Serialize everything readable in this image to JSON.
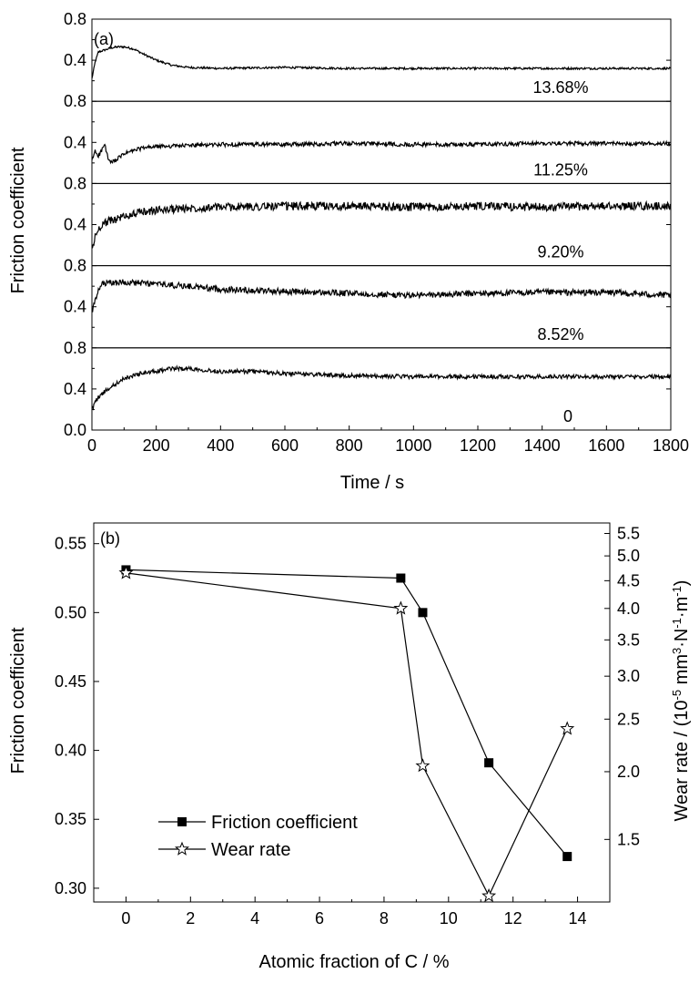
{
  "chart_data": [
    {
      "type": "line",
      "panel_label": "(a)",
      "xlabel": "Time / s",
      "ylabel": "Friction coefficient",
      "xlim": [
        0,
        1800
      ],
      "x_ticks": [
        "0",
        "200",
        "400",
        "600",
        "800",
        "1000",
        "1200",
        "1400",
        "1600",
        "1800"
      ],
      "y_tick_labels": [
        "0.8",
        "0.4",
        "0.0"
      ],
      "subplots": [
        {
          "label": "13.68%",
          "ylim": [
            0.0,
            0.8
          ],
          "y_ticks": [
            "0.8",
            "0.4"
          ],
          "x": [
            0,
            10,
            20,
            40,
            60,
            80,
            100,
            130,
            160,
            200,
            250,
            300,
            400,
            600,
            800,
            1000,
            1200,
            1400,
            1600,
            1800
          ],
          "y": [
            0.22,
            0.38,
            0.48,
            0.5,
            0.52,
            0.53,
            0.53,
            0.51,
            0.46,
            0.4,
            0.35,
            0.33,
            0.32,
            0.33,
            0.32,
            0.32,
            0.32,
            0.32,
            0.32,
            0.32
          ],
          "noise": 0.01
        },
        {
          "label": "11.25%",
          "ylim": [
            0.0,
            0.8
          ],
          "y_ticks": [
            "0.8",
            "0.4"
          ],
          "x": [
            0,
            10,
            20,
            30,
            40,
            50,
            60,
            80,
            100,
            150,
            200,
            300,
            400,
            600,
            800,
            1000,
            1200,
            1400,
            1600,
            1800
          ],
          "y": [
            0.22,
            0.32,
            0.27,
            0.32,
            0.38,
            0.24,
            0.2,
            0.24,
            0.29,
            0.34,
            0.36,
            0.37,
            0.38,
            0.38,
            0.39,
            0.38,
            0.38,
            0.39,
            0.39,
            0.39
          ],
          "noise": 0.02
        },
        {
          "label": "9.20%",
          "ylim": [
            0.0,
            0.8
          ],
          "y_ticks": [
            "0.8",
            "0.4"
          ],
          "x": [
            0,
            10,
            20,
            30,
            50,
            80,
            100,
            150,
            200,
            300,
            400,
            600,
            800,
            1000,
            1200,
            1400,
            1600,
            1800
          ],
          "y": [
            0.15,
            0.28,
            0.35,
            0.4,
            0.43,
            0.46,
            0.48,
            0.52,
            0.54,
            0.56,
            0.57,
            0.58,
            0.58,
            0.57,
            0.58,
            0.57,
            0.58,
            0.58
          ],
          "noise": 0.04
        },
        {
          "label": "8.52%",
          "ylim": [
            0.0,
            0.8
          ],
          "y_ticks": [
            "0.8",
            "0.4"
          ],
          "x": [
            0,
            10,
            20,
            30,
            50,
            100,
            200,
            300,
            400,
            600,
            800,
            1000,
            1200,
            1400,
            1600,
            1800
          ],
          "y": [
            0.35,
            0.45,
            0.55,
            0.62,
            0.63,
            0.64,
            0.62,
            0.6,
            0.57,
            0.55,
            0.53,
            0.51,
            0.53,
            0.54,
            0.54,
            0.51
          ],
          "noise": 0.03
        },
        {
          "label": "0",
          "ylim": [
            0.0,
            0.8
          ],
          "y_ticks": [
            "0.8",
            "0.4",
            "0.0"
          ],
          "x": [
            0,
            10,
            20,
            50,
            100,
            150,
            200,
            250,
            300,
            400,
            500,
            600,
            800,
            1000,
            1200,
            1400,
            1600,
            1800
          ],
          "y": [
            0.2,
            0.27,
            0.32,
            0.4,
            0.5,
            0.55,
            0.57,
            0.6,
            0.6,
            0.57,
            0.57,
            0.55,
            0.53,
            0.52,
            0.52,
            0.52,
            0.52,
            0.52
          ],
          "noise": 0.02
        }
      ]
    },
    {
      "type": "line",
      "panel_label": "(b)",
      "xlabel": "Atomic fraction of C / %",
      "ylabel_left": "Friction coefficient",
      "ylabel_right_parts": {
        "pre": "Wear rate / (10",
        "sup1": "-5",
        "mid1": " mm",
        "sup2": "3",
        "mid2": "·N",
        "sup3": "-1",
        "mid3": "·m",
        "sup4": "-1",
        "post": ")"
      },
      "xlim": [
        -1,
        15
      ],
      "x_ticks": [
        "0",
        "2",
        "4",
        "6",
        "8",
        "10",
        "12",
        "14"
      ],
      "ylim_left": [
        0.29,
        0.565
      ],
      "y_ticks_left": [
        "0.30",
        "0.35",
        "0.40",
        "0.45",
        "0.50",
        "0.55"
      ],
      "ylim_right": [
        1.15,
        5.75
      ],
      "y_scale_right": "log",
      "y_ticks_right": [
        "1.5",
        "2.0",
        "2.5",
        "3.0",
        "3.5",
        "4.0",
        "4.5",
        "5.0",
        "5.5"
      ],
      "series": [
        {
          "name": "Friction coefficient",
          "axis": "left",
          "marker": "square",
          "x": [
            0,
            8.52,
            9.2,
            11.25,
            13.68
          ],
          "values": [
            0.531,
            0.525,
            0.5,
            0.391,
            0.323
          ]
        },
        {
          "name": "Wear rate",
          "axis": "right",
          "marker": "star",
          "x": [
            0,
            8.52,
            9.2,
            11.25,
            13.68
          ],
          "values": [
            4.65,
            4.0,
            2.05,
            1.18,
            2.4
          ]
        }
      ],
      "legend_position": "bottom-left"
    }
  ]
}
